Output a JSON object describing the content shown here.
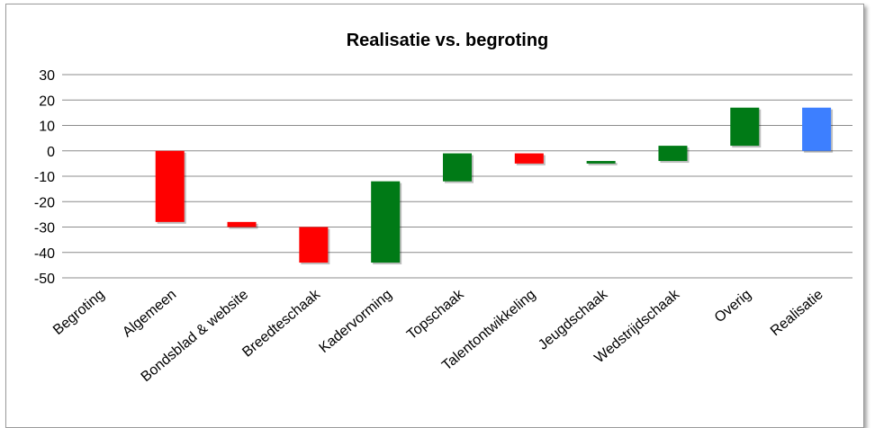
{
  "chart_data": {
    "type": "bar",
    "title": "Realisatie vs. begroting",
    "xlabel": "",
    "ylabel": "",
    "ylim": [
      -50,
      30
    ],
    "yticks": [
      "30",
      "20",
      "10",
      "0",
      "-10",
      "-20",
      "-30",
      "-40",
      "-50"
    ],
    "ytick_values": [
      30,
      20,
      10,
      0,
      -10,
      -20,
      -30,
      -40,
      -50
    ],
    "grid": true,
    "legend": "none",
    "categories": [
      "Begroting",
      "Algemeen",
      "Bondsblad & website",
      "Breedteschaak",
      "Kadervorming",
      "Topschaak",
      "Talentontwikkeling",
      "Jeugdschaak",
      "Wedstrijdschaak",
      "Overig",
      "Realisatie"
    ],
    "bars": [
      {
        "low": 0,
        "high": 0,
        "color": "none"
      },
      {
        "low": -28,
        "high": 0,
        "color": "#ff0000"
      },
      {
        "low": -30,
        "high": -28,
        "color": "#ff0000"
      },
      {
        "low": -44,
        "high": -30,
        "color": "#ff0000"
      },
      {
        "low": -44,
        "high": -12,
        "color": "#007a16"
      },
      {
        "low": -12,
        "high": -1,
        "color": "#007a16"
      },
      {
        "low": -5,
        "high": -1,
        "color": "#ff0000"
      },
      {
        "low": -5,
        "high": -4,
        "color": "#007a16"
      },
      {
        "low": -4,
        "high": 2,
        "color": "#007a16"
      },
      {
        "low": 2,
        "high": 17,
        "color": "#007a16"
      },
      {
        "low": 0,
        "high": 17,
        "color": "#3d7fff"
      }
    ]
  }
}
